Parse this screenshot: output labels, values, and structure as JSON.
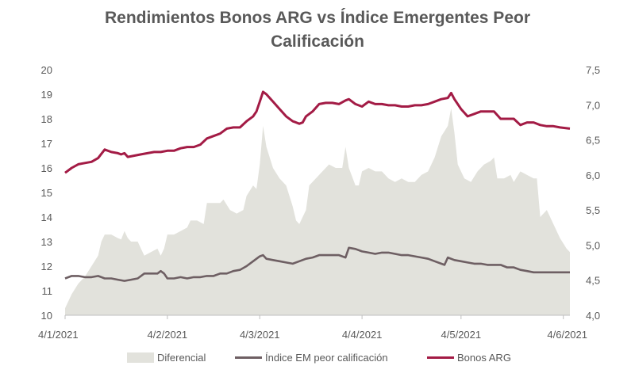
{
  "chart_data": {
    "type": "line",
    "title_line1": "Rendimientos Bonos ARG vs Índice Emergentes Peor",
    "title_line2": "Calificación",
    "x_tick_labels": [
      "4/1/2021",
      "4/2/2021",
      "4/3/2021",
      "4/4/2021",
      "4/5/2021",
      "4/6/2021"
    ],
    "x_range_days": [
      0,
      153
    ],
    "x_tick_days": [
      0,
      31,
      59,
      90,
      120,
      151
    ],
    "y_left": {
      "min": 10,
      "max": 20,
      "ticks": [
        "10",
        "11",
        "12",
        "13",
        "14",
        "15",
        "16",
        "17",
        "18",
        "19",
        "20"
      ]
    },
    "y_right": {
      "min": 4.0,
      "max": 7.5,
      "ticks": [
        "4,0",
        "4,5",
        "5,0",
        "5,5",
        "6,0",
        "6,5",
        "7,0",
        "7,5"
      ]
    },
    "series": [
      {
        "name": "Diferencial",
        "kind": "area",
        "axis": "right",
        "color": "#e2e2dc",
        "points": [
          [
            0,
            4.1
          ],
          [
            2,
            4.3
          ],
          [
            4,
            4.45
          ],
          [
            6,
            4.55
          ],
          [
            8,
            4.7
          ],
          [
            10,
            4.85
          ],
          [
            11,
            5.05
          ],
          [
            12,
            5.15
          ],
          [
            14,
            5.15
          ],
          [
            16,
            5.1
          ],
          [
            17,
            5.08
          ],
          [
            18,
            5.2
          ],
          [
            19,
            5.1
          ],
          [
            20,
            5.05
          ],
          [
            22,
            5.05
          ],
          [
            23,
            4.95
          ],
          [
            24,
            4.85
          ],
          [
            26,
            4.9
          ],
          [
            28,
            4.95
          ],
          [
            29,
            4.85
          ],
          [
            30,
            4.95
          ],
          [
            31,
            5.15
          ],
          [
            33,
            5.15
          ],
          [
            35,
            5.2
          ],
          [
            37,
            5.25
          ],
          [
            38,
            5.35
          ],
          [
            40,
            5.35
          ],
          [
            42,
            5.3
          ],
          [
            43,
            5.6
          ],
          [
            45,
            5.6
          ],
          [
            47,
            5.6
          ],
          [
            48,
            5.65
          ],
          [
            50,
            5.5
          ],
          [
            52,
            5.45
          ],
          [
            54,
            5.5
          ],
          [
            55,
            5.7
          ],
          [
            57,
            5.85
          ],
          [
            58,
            5.8
          ],
          [
            59,
            6.15
          ],
          [
            60,
            6.7
          ],
          [
            61,
            6.4
          ],
          [
            63,
            6.1
          ],
          [
            65,
            5.95
          ],
          [
            67,
            5.85
          ],
          [
            69,
            5.55
          ],
          [
            70,
            5.35
          ],
          [
            71,
            5.3
          ],
          [
            72,
            5.4
          ],
          [
            73,
            5.5
          ],
          [
            74,
            5.85
          ],
          [
            76,
            5.95
          ],
          [
            78,
            6.05
          ],
          [
            80,
            6.15
          ],
          [
            82,
            6.1
          ],
          [
            84,
            6.1
          ],
          [
            85,
            6.4
          ],
          [
            86,
            6.1
          ],
          [
            88,
            5.85
          ],
          [
            89,
            5.85
          ],
          [
            90,
            6.05
          ],
          [
            92,
            6.1
          ],
          [
            94,
            6.05
          ],
          [
            96,
            6.05
          ],
          [
            98,
            5.95
          ],
          [
            100,
            5.9
          ],
          [
            102,
            5.95
          ],
          [
            104,
            5.9
          ],
          [
            106,
            5.9
          ],
          [
            108,
            6.0
          ],
          [
            110,
            6.05
          ],
          [
            112,
            6.25
          ],
          [
            114,
            6.55
          ],
          [
            116,
            6.7
          ],
          [
            117,
            6.95
          ],
          [
            118,
            6.6
          ],
          [
            119,
            6.15
          ],
          [
            121,
            5.95
          ],
          [
            123,
            5.9
          ],
          [
            125,
            6.05
          ],
          [
            127,
            6.15
          ],
          [
            129,
            6.2
          ],
          [
            130,
            6.25
          ],
          [
            131,
            5.95
          ],
          [
            133,
            5.95
          ],
          [
            135,
            6.0
          ],
          [
            136,
            5.9
          ],
          [
            138,
            6.05
          ],
          [
            140,
            6.0
          ],
          [
            142,
            5.95
          ],
          [
            143,
            5.95
          ],
          [
            144,
            5.4
          ],
          [
            146,
            5.5
          ],
          [
            148,
            5.3
          ],
          [
            150,
            5.1
          ],
          [
            152,
            4.95
          ],
          [
            153,
            4.9
          ]
        ]
      },
      {
        "name": "Índice EM peor calificación",
        "kind": "line",
        "axis": "left",
        "color": "#6e5f63",
        "points": [
          [
            0,
            11.5
          ],
          [
            2,
            11.6
          ],
          [
            4,
            11.6
          ],
          [
            6,
            11.55
          ],
          [
            8,
            11.55
          ],
          [
            10,
            11.6
          ],
          [
            12,
            11.5
          ],
          [
            14,
            11.5
          ],
          [
            16,
            11.45
          ],
          [
            18,
            11.4
          ],
          [
            20,
            11.45
          ],
          [
            22,
            11.5
          ],
          [
            24,
            11.7
          ],
          [
            26,
            11.7
          ],
          [
            28,
            11.7
          ],
          [
            29,
            11.8
          ],
          [
            30,
            11.7
          ],
          [
            31,
            11.5
          ],
          [
            33,
            11.5
          ],
          [
            35,
            11.55
          ],
          [
            37,
            11.5
          ],
          [
            39,
            11.55
          ],
          [
            41,
            11.55
          ],
          [
            43,
            11.6
          ],
          [
            45,
            11.6
          ],
          [
            47,
            11.7
          ],
          [
            49,
            11.7
          ],
          [
            51,
            11.8
          ],
          [
            53,
            11.85
          ],
          [
            55,
            12.0
          ],
          [
            57,
            12.2
          ],
          [
            59,
            12.4
          ],
          [
            60,
            12.45
          ],
          [
            61,
            12.3
          ],
          [
            63,
            12.25
          ],
          [
            65,
            12.2
          ],
          [
            67,
            12.15
          ],
          [
            69,
            12.1
          ],
          [
            71,
            12.2
          ],
          [
            73,
            12.3
          ],
          [
            75,
            12.35
          ],
          [
            77,
            12.45
          ],
          [
            79,
            12.45
          ],
          [
            81,
            12.45
          ],
          [
            83,
            12.45
          ],
          [
            85,
            12.35
          ],
          [
            86,
            12.75
          ],
          [
            88,
            12.7
          ],
          [
            90,
            12.6
          ],
          [
            92,
            12.55
          ],
          [
            94,
            12.5
          ],
          [
            96,
            12.55
          ],
          [
            98,
            12.55
          ],
          [
            100,
            12.5
          ],
          [
            102,
            12.45
          ],
          [
            104,
            12.45
          ],
          [
            106,
            12.4
          ],
          [
            108,
            12.35
          ],
          [
            110,
            12.3
          ],
          [
            112,
            12.2
          ],
          [
            114,
            12.1
          ],
          [
            115,
            12.05
          ],
          [
            116,
            12.35
          ],
          [
            118,
            12.25
          ],
          [
            120,
            12.2
          ],
          [
            122,
            12.15
          ],
          [
            124,
            12.1
          ],
          [
            126,
            12.1
          ],
          [
            128,
            12.05
          ],
          [
            130,
            12.05
          ],
          [
            132,
            12.05
          ],
          [
            134,
            11.95
          ],
          [
            136,
            11.95
          ],
          [
            138,
            11.85
          ],
          [
            140,
            11.8
          ],
          [
            142,
            11.75
          ],
          [
            144,
            11.75
          ],
          [
            146,
            11.75
          ],
          [
            148,
            11.75
          ],
          [
            150,
            11.75
          ],
          [
            153,
            11.75
          ]
        ]
      },
      {
        "name": "Bonos ARG",
        "kind": "line",
        "axis": "left",
        "color": "#a31b45",
        "points": [
          [
            0,
            15.8
          ],
          [
            2,
            16.0
          ],
          [
            4,
            16.15
          ],
          [
            6,
            16.2
          ],
          [
            8,
            16.25
          ],
          [
            10,
            16.4
          ],
          [
            12,
            16.75
          ],
          [
            14,
            16.65
          ],
          [
            16,
            16.6
          ],
          [
            17,
            16.55
          ],
          [
            18,
            16.6
          ],
          [
            19,
            16.45
          ],
          [
            21,
            16.5
          ],
          [
            23,
            16.55
          ],
          [
            25,
            16.6
          ],
          [
            27,
            16.65
          ],
          [
            29,
            16.65
          ],
          [
            31,
            16.7
          ],
          [
            33,
            16.7
          ],
          [
            35,
            16.8
          ],
          [
            37,
            16.85
          ],
          [
            39,
            16.85
          ],
          [
            41,
            16.95
          ],
          [
            43,
            17.2
          ],
          [
            45,
            17.3
          ],
          [
            47,
            17.4
          ],
          [
            49,
            17.6
          ],
          [
            51,
            17.65
          ],
          [
            53,
            17.65
          ],
          [
            55,
            17.9
          ],
          [
            57,
            18.1
          ],
          [
            58,
            18.3
          ],
          [
            59,
            18.7
          ],
          [
            60,
            19.1
          ],
          [
            61,
            19.0
          ],
          [
            63,
            18.7
          ],
          [
            65,
            18.4
          ],
          [
            67,
            18.1
          ],
          [
            69,
            17.9
          ],
          [
            70,
            17.85
          ],
          [
            71,
            17.8
          ],
          [
            72,
            17.85
          ],
          [
            73,
            18.1
          ],
          [
            75,
            18.3
          ],
          [
            77,
            18.6
          ],
          [
            79,
            18.65
          ],
          [
            81,
            18.65
          ],
          [
            83,
            18.6
          ],
          [
            85,
            18.75
          ],
          [
            86,
            18.8
          ],
          [
            88,
            18.6
          ],
          [
            90,
            18.5
          ],
          [
            92,
            18.7
          ],
          [
            94,
            18.6
          ],
          [
            96,
            18.6
          ],
          [
            98,
            18.55
          ],
          [
            100,
            18.55
          ],
          [
            102,
            18.5
          ],
          [
            104,
            18.5
          ],
          [
            106,
            18.55
          ],
          [
            108,
            18.55
          ],
          [
            110,
            18.6
          ],
          [
            112,
            18.7
          ],
          [
            114,
            18.8
          ],
          [
            116,
            18.85
          ],
          [
            117,
            19.05
          ],
          [
            118,
            18.8
          ],
          [
            120,
            18.4
          ],
          [
            122,
            18.1
          ],
          [
            124,
            18.2
          ],
          [
            126,
            18.3
          ],
          [
            128,
            18.3
          ],
          [
            130,
            18.3
          ],
          [
            132,
            18.0
          ],
          [
            134,
            18.0
          ],
          [
            136,
            18.0
          ],
          [
            138,
            17.75
          ],
          [
            140,
            17.85
          ],
          [
            142,
            17.85
          ],
          [
            144,
            17.75
          ],
          [
            146,
            17.7
          ],
          [
            148,
            17.7
          ],
          [
            150,
            17.65
          ],
          [
            153,
            17.6
          ]
        ]
      }
    ]
  }
}
